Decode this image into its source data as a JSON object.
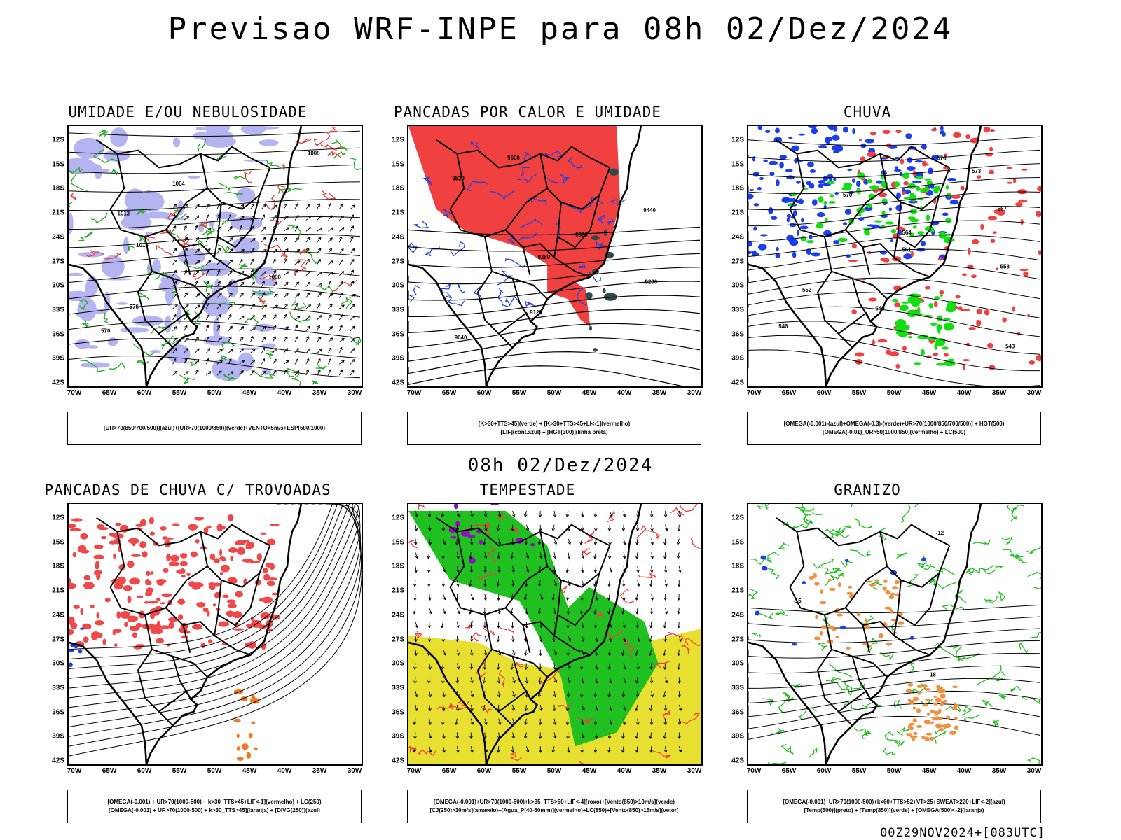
{
  "title": "Previsao WRF-INPE  para 08h 02/Dez/2024",
  "mid_title": "08h 02/Dez/2024",
  "footer": "00Z29NOV2024+[083UTC]",
  "axes": {
    "lat": [
      "12S",
      "15S",
      "18S",
      "21S",
      "24S",
      "27S",
      "30S",
      "33S",
      "36S",
      "39S",
      "42S"
    ],
    "lon": [
      "70W",
      "65W",
      "60W",
      "55W",
      "50W",
      "45W",
      "40W",
      "35W",
      "30W"
    ]
  },
  "panels": [
    {
      "title": "UMIDADE E/OU NEBULOSIDADE",
      "legend": [
        "[UR>70(850/700/500)](azul)+[UR>70(1000/850)](verde)+VENTO>5m/s+ESP(500/1000)"
      ],
      "contour_labels": [
        "1008",
        "1004",
        "1012",
        "1016",
        "1000",
        "576",
        "570"
      ],
      "colors": {
        "fill": "#b4b4f0",
        "line1": "#22aa22",
        "line2": "#e04040",
        "line3": "#000000"
      }
    },
    {
      "title": "PANCADAS POR CALOR E UMIDADE",
      "legend": [
        "[K>30+TTS>45](verde) + [K>30+TTS>45+LI<-1](vermelho)",
        "[LIF](cont.azul) + [HGT(300)](linha preta)"
      ],
      "contour_labels": [
        "9600",
        "9520",
        "9440",
        "9360",
        "9280",
        "9200",
        "9120",
        "9040"
      ],
      "colors": {
        "fill": "#f04040",
        "line1": "#2040e0",
        "line2": "#2e4a4a",
        "line3": "#000000"
      }
    },
    {
      "title": "CHUVA",
      "legend": [
        "[OMEGA(-0.001)-(azul)+OMEGA(-0.3)-(verde)+UR>70(1000/850/700/500)] + HGT(500)",
        "[OMEGA(-0.01)_UR>50(1000/850)(vermelho) + LC(500)"
      ],
      "contour_labels": [
        "576",
        "573",
        "570",
        "567",
        "564",
        "561",
        "558",
        "552",
        "549",
        "546",
        "543"
      ],
      "colors": {
        "fill": "#f04040",
        "line1": "#1a3ef0",
        "line2": "#10e010",
        "line3": "#000000"
      }
    },
    {
      "title": "PANCADAS DE CHUVA C/ TROVOADAS",
      "legend": [
        "[OMEGA(-0.001) + UR>70(1000-500) + k>30_TTS>45+LIF<-1](vermelho) + LC(250)",
        "[OMEGA(-0.001) + UR>70(1000-500) + k>30_TTS>45](laranja) + [DIVG(250)](azul)"
      ],
      "contour_labels": [],
      "colors": {
        "fill": "#f04848",
        "line1": "#f07820",
        "line2": "#2040e0",
        "line3": "#000000"
      }
    },
    {
      "title": "TEMPESTADE",
      "legend": [
        "[OMEGA(-0.001)+UR>70(1000-500)+k>35_TTS>50+LIF<-4](roxo)+[Vento(850)>10m/s](verde)",
        "[CJ(250)>30m/s](amarelo)+[Agua_P(40-60mm)](vermelho)+LC(850)+[Vento(850)>15m/s](vetor)"
      ],
      "contour_labels": [],
      "colors": {
        "fill": "#e8e030",
        "line1": "#20c020",
        "line2": "#f04040",
        "line3": "#9010c0"
      }
    },
    {
      "title": "GRANIZO",
      "legend": [
        "[OMEGA(-0.001)+UR>70(1000-500)+k<60+TTS>52+VT>25+SWEAT>220+LIF<-2](azul)",
        "[Temp(500)](preto) + [Temp(850)](verde) + [OMEGA(500)<-2](laranja)"
      ],
      "contour_labels": [
        "-12",
        "-15",
        "-18"
      ],
      "colors": {
        "fill": "#f09040",
        "line1": "#20c020",
        "line2": "#2040e0",
        "line3": "#000000"
      }
    }
  ]
}
